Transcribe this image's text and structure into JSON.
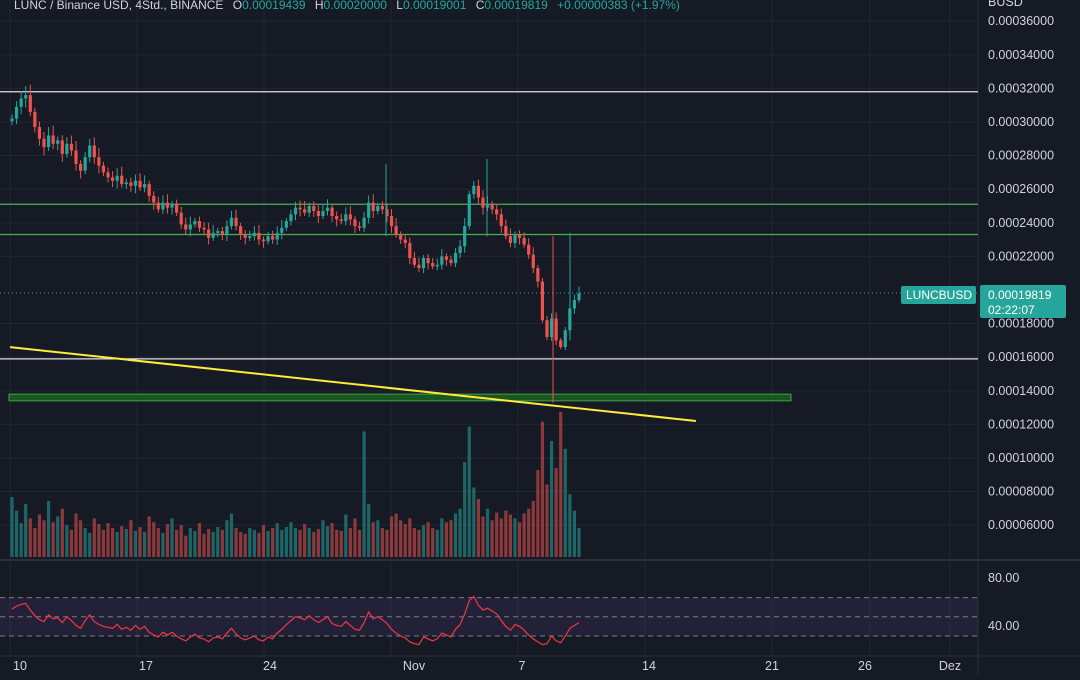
{
  "header": {
    "symbol": "LUNC / Binance USD, 4Std., BINANCE",
    "o_label": "O",
    "o_value": "0.00019439",
    "h_label": "H",
    "h_value": "0.00020000",
    "l_label": "L",
    "l_value": "0.00019001",
    "c_label": "C",
    "c_value": "0.00019819",
    "change": "+0.00000383 (+1.97%)"
  },
  "price_axis": {
    "unit": "BUSD",
    "ticks": [
      "0.00036000",
      "0.00034000",
      "0.00032000",
      "0.00030000",
      "0.00028000",
      "0.00026000",
      "0.00024000",
      "0.00022000",
      "0.00018000",
      "0.00016000",
      "0.00014000",
      "0.00012000",
      "0.00010000",
      "0.00008000",
      "0.00006000"
    ]
  },
  "last_price": {
    "symbol_label": "LUNCBUSD",
    "price": "0.00019819",
    "countdown": "02:22:07"
  },
  "rsi_axis": {
    "ticks": [
      "80.00",
      "40.00"
    ]
  },
  "x_axis": {
    "ticks": [
      "10",
      "17",
      "24",
      "Nov",
      "7",
      "14",
      "21",
      "26",
      "Dez"
    ]
  },
  "colors": {
    "up": "#26a69a",
    "down": "#ef5350",
    "background": "#161a25",
    "support_line": "#ffffff",
    "resistance_line": "#4caf50",
    "zone": "#2e7d32",
    "trendline": "#ffeb3b",
    "rsi": "#f23645",
    "rsi_band": "#7e57c2"
  },
  "chart_data": {
    "type": "candlestick",
    "title": "LUNC / Binance USD, 4Std., BINANCE",
    "y_range": [
      5e-05,
      0.00037
    ],
    "x_range": [
      "2022-10-10",
      "2022-12-01"
    ],
    "horizontal_levels": [
      {
        "price": 0.000318,
        "color": "white"
      },
      {
        "price": 0.000251,
        "color": "green"
      },
      {
        "price": 0.000233,
        "color": "green"
      },
      {
        "price": 0.000159,
        "color": "white"
      }
    ],
    "support_zone": [
      0.000134,
      0.000138
    ],
    "trendline": [
      {
        "date": "2022-10-10",
        "price": 0.000166
      },
      {
        "date": "2022-11-17",
        "price": 0.000122
      }
    ],
    "close_series": [
      0.000302,
      0.000309,
      0.000314,
      0.000316,
      0.000306,
      0.000297,
      0.00029,
      0.000285,
      0.000292,
      0.000287,
      0.000289,
      0.000281,
      0.000287,
      0.000283,
      0.000275,
      0.000271,
      0.000279,
      0.000286,
      0.000279,
      0.000274,
      0.00027,
      0.000267,
      0.000265,
      0.000268,
      0.000263,
      0.000264,
      0.000262,
      0.000265,
      0.000261,
      0.000263,
      0.000256,
      0.000252,
      0.000248,
      0.000252,
      0.000249,
      0.000251,
      0.000246,
      0.000239,
      0.000236,
      0.000239,
      0.000241,
      0.000237,
      0.000236,
      0.000231,
      0.000234,
      0.000235,
      0.000233,
      0.000238,
      0.000243,
      0.000238,
      0.000233,
      0.000231,
      0.000232,
      0.000234,
      0.00023,
      0.000229,
      0.000232,
      0.00023,
      0.000234,
      0.000237,
      0.000241,
      0.000245,
      0.000249,
      0.000248,
      0.000246,
      0.00025,
      0.000247,
      0.000244,
      0.000247,
      0.000249,
      0.000244,
      0.000242,
      0.000241,
      0.000245,
      0.000242,
      0.000238,
      0.000237,
      0.000243,
      0.000252,
      0.000247,
      0.00025,
      0.000248,
      0.000244,
      0.000238,
      0.000233,
      0.00023,
      0.000228,
      0.000219,
      0.000215,
      0.000213,
      0.000219,
      0.000216,
      0.000214,
      0.000215,
      0.00022,
      0.000218,
      0.000216,
      0.000222,
      0.000226,
      0.000238,
      0.000257,
      0.000262,
      0.000255,
      0.000249,
      0.000251,
      0.000248,
      0.000245,
      0.000238,
      0.000232,
      0.000228,
      0.000233,
      0.000231,
      0.000227,
      0.000221,
      0.000213,
      0.000205,
      0.000182,
      0.000172,
      0.000183,
      0.00017,
      0.000166,
      0.000176,
      0.000189,
      0.000194,
      0.000198
    ],
    "rsi_series": [
      58,
      61,
      63,
      64,
      57,
      51,
      47,
      45,
      52,
      48,
      49,
      44,
      50,
      46,
      41,
      38,
      46,
      52,
      45,
      42,
      40,
      39,
      38,
      42,
      37,
      39,
      36,
      41,
      37,
      40,
      34,
      31,
      29,
      34,
      31,
      34,
      30,
      27,
      25,
      29,
      32,
      28,
      27,
      24,
      28,
      29,
      27,
      33,
      38,
      32,
      28,
      26,
      28,
      30,
      26,
      25,
      29,
      27,
      33,
      37,
      42,
      46,
      50,
      49,
      47,
      51,
      47,
      44,
      47,
      50,
      43,
      41,
      40,
      45,
      41,
      37,
      36,
      44,
      55,
      48,
      50,
      47,
      43,
      37,
      33,
      30,
      28,
      24,
      22,
      21,
      29,
      27,
      25,
      27,
      33,
      31,
      29,
      37,
      42,
      53,
      67,
      71,
      62,
      57,
      59,
      56,
      53,
      46,
      40,
      36,
      42,
      40,
      36,
      31,
      27,
      24,
      21,
      22,
      30,
      25,
      23,
      30,
      38,
      41,
      44
    ],
    "volume_series": [
      62,
      48,
      35,
      55,
      40,
      30,
      44,
      38,
      58,
      36,
      42,
      50,
      33,
      28,
      45,
      38,
      30,
      25,
      40,
      34,
      28,
      35,
      30,
      26,
      32,
      29,
      38,
      27,
      31,
      26,
      42,
      36,
      30,
      25,
      34,
      40,
      28,
      33,
      22,
      30,
      27,
      35,
      24,
      29,
      26,
      31,
      28,
      38,
      45,
      30,
      26,
      24,
      30,
      28,
      25,
      33,
      27,
      30,
      35,
      28,
      31,
      36,
      30,
      28,
      34,
      30,
      26,
      29,
      38,
      32,
      35,
      28,
      27,
      44,
      30,
      40,
      28,
      130,
      55,
      36,
      38,
      30,
      28,
      42,
      45,
      38,
      34,
      40,
      30,
      28,
      33,
      36,
      30,
      28,
      40,
      36,
      38,
      45,
      50,
      98,
      135,
      72,
      60,
      42,
      50,
      38,
      46,
      40,
      48,
      44,
      40,
      36,
      45,
      50,
      58,
      90,
      140,
      75,
      120,
      92,
      150,
      112,
      65,
      48,
      30
    ]
  }
}
